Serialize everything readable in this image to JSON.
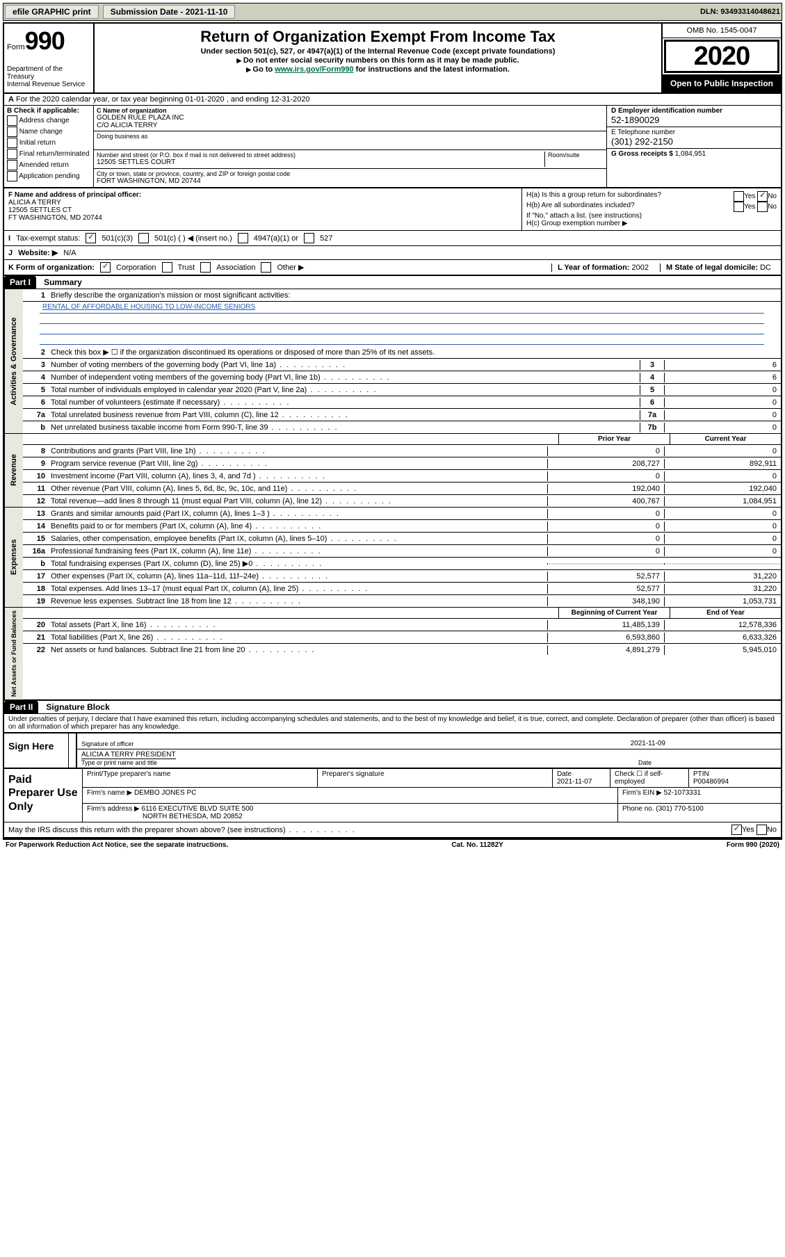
{
  "topbar": {
    "efile": "efile GRAPHIC print",
    "submission_label": "Submission Date - 2021-11-10",
    "dln": "DLN: 93493314048621"
  },
  "header": {
    "form_word": "Form",
    "form_number": "990",
    "title": "Return of Organization Exempt From Income Tax",
    "subtitle1": "Under section 501(c), 527, or 4947(a)(1) of the Internal Revenue Code (except private foundations)",
    "subtitle2": "Do not enter social security numbers on this form as it may be made public.",
    "subtitle3_prefix": "Go to ",
    "subtitle3_link": "www.irs.gov/Form990",
    "subtitle3_suffix": " for instructions and the latest information.",
    "dept": "Department of the Treasury",
    "irs": "Internal Revenue Service",
    "omb": "OMB No. 1545-0047",
    "year": "2020",
    "open": "Open to Public Inspection"
  },
  "taxyear": "For the 2020 calendar year, or tax year beginning 01-01-2020    , and ending 12-31-2020",
  "blockB": {
    "label": "B Check if applicable:",
    "addr": "Address change",
    "name": "Name change",
    "init": "Initial return",
    "final": "Final return/terminated",
    "amend": "Amended return",
    "app": "Application pending"
  },
  "blockC": {
    "name_lbl": "C Name of organization",
    "name": "GOLDEN RULE PLAZA INC",
    "co": "C/O ALICIA TERRY",
    "dba_lbl": "Doing business as",
    "street_lbl": "Number and street (or P.O. box if mail is not delivered to street address)",
    "street": "12505 SETTLES COURT",
    "room_lbl": "Room/suite",
    "city_lbl": "City or town, state or province, country, and ZIP or foreign postal code",
    "city": "FORT WASHINGTON, MD  20744"
  },
  "blockD": {
    "lbl": "D Employer identification number",
    "val": "52-1890029"
  },
  "blockE": {
    "lbl": "E Telephone number",
    "val": "(301) 292-2150"
  },
  "blockG": {
    "lbl": "G Gross receipts $",
    "val": "1,084,951"
  },
  "blockF": {
    "lbl": "F Name and address of principal officer:",
    "name": "ALICIA A TERRY",
    "street": "12505 SETTLES CT",
    "city": "FT WASHINGTON, MD  20744"
  },
  "blockH": {
    "ha": "H(a)  Is this a group return for subordinates?",
    "hb": "H(b)  Are all subordinates included?",
    "hb_note": "If \"No,\" attach a list. (see instructions)",
    "hc": "H(c)  Group exemption number ▶",
    "yes": "Yes",
    "no": "No"
  },
  "blockI": {
    "lbl": "Tax-exempt status:",
    "c501c3": "501(c)(3)",
    "c501c": "501(c) (   ) ◀ (insert no.)",
    "c4947": "4947(a)(1) or",
    "c527": "527"
  },
  "blockJ": {
    "lbl": "Website: ▶",
    "val": "N/A"
  },
  "blockK": {
    "lbl": "K Form of organization:",
    "corp": "Corporation",
    "trust": "Trust",
    "assoc": "Association",
    "other": "Other ▶"
  },
  "blockL": {
    "lbl": "L Year of formation:",
    "val": "2002"
  },
  "blockM": {
    "lbl": "M State of legal domicile:",
    "val": "DC"
  },
  "part1": {
    "header": "Part I",
    "title": "Summary",
    "line1_lbl": "Briefly describe the organization's mission or most significant activities:",
    "line1_val": "RENTAL OF AFFORDABLE HOUSING TO LOW-INCOME SENIORS",
    "line2": "Check this box ▶ ☐  if the organization discontinued its operations or disposed of more than 25% of its net assets.",
    "lines_ag": [
      {
        "n": "3",
        "d": "Number of voting members of the governing body (Part VI, line 1a)",
        "b": "3",
        "v": "6"
      },
      {
        "n": "4",
        "d": "Number of independent voting members of the governing body (Part VI, line 1b)",
        "b": "4",
        "v": "6"
      },
      {
        "n": "5",
        "d": "Total number of individuals employed in calendar year 2020 (Part V, line 2a)",
        "b": "5",
        "v": "0"
      },
      {
        "n": "6",
        "d": "Total number of volunteers (estimate if necessary)",
        "b": "6",
        "v": "0"
      },
      {
        "n": "7a",
        "d": "Total unrelated business revenue from Part VIII, column (C), line 12",
        "b": "7a",
        "v": "0"
      },
      {
        "n": "b",
        "d": "Net unrelated business taxable income from Form 990-T, line 39",
        "b": "7b",
        "v": "0"
      }
    ],
    "prior_year": "Prior Year",
    "current_year": "Current Year",
    "revenue": [
      {
        "n": "8",
        "d": "Contributions and grants (Part VIII, line 1h)",
        "p": "0",
        "c": "0"
      },
      {
        "n": "9",
        "d": "Program service revenue (Part VIII, line 2g)",
        "p": "208,727",
        "c": "892,911"
      },
      {
        "n": "10",
        "d": "Investment income (Part VIII, column (A), lines 3, 4, and 7d )",
        "p": "0",
        "c": "0"
      },
      {
        "n": "11",
        "d": "Other revenue (Part VIII, column (A), lines 5, 6d, 8c, 9c, 10c, and 11e)",
        "p": "192,040",
        "c": "192,040"
      },
      {
        "n": "12",
        "d": "Total revenue—add lines 8 through 11 (must equal Part VIII, column (A), line 12)",
        "p": "400,767",
        "c": "1,084,951"
      }
    ],
    "expenses": [
      {
        "n": "13",
        "d": "Grants and similar amounts paid (Part IX, column (A), lines 1–3 )",
        "p": "0",
        "c": "0"
      },
      {
        "n": "14",
        "d": "Benefits paid to or for members (Part IX, column (A), line 4)",
        "p": "0",
        "c": "0"
      },
      {
        "n": "15",
        "d": "Salaries, other compensation, employee benefits (Part IX, column (A), lines 5–10)",
        "p": "0",
        "c": "0"
      },
      {
        "n": "16a",
        "d": "Professional fundraising fees (Part IX, column (A), line 11e)",
        "p": "0",
        "c": "0"
      },
      {
        "n": "b",
        "d": "Total fundraising expenses (Part IX, column (D), line 25) ▶0",
        "p": "",
        "c": ""
      },
      {
        "n": "17",
        "d": "Other expenses (Part IX, column (A), lines 11a–11d, 11f–24e)",
        "p": "52,577",
        "c": "31,220"
      },
      {
        "n": "18",
        "d": "Total expenses. Add lines 13–17 (must equal Part IX, column (A), line 25)",
        "p": "52,577",
        "c": "31,220"
      },
      {
        "n": "19",
        "d": "Revenue less expenses. Subtract line 18 from line 12",
        "p": "348,190",
        "c": "1,053,731"
      }
    ],
    "boy": "Beginning of Current Year",
    "eoy": "End of Year",
    "netassets": [
      {
        "n": "20",
        "d": "Total assets (Part X, line 16)",
        "p": "11,485,139",
        "c": "12,578,336"
      },
      {
        "n": "21",
        "d": "Total liabilities (Part X, line 26)",
        "p": "6,593,860",
        "c": "6,633,326"
      },
      {
        "n": "22",
        "d": "Net assets or fund balances. Subtract line 21 from line 20",
        "p": "4,891,279",
        "c": "5,945,010"
      }
    ],
    "vtab_ag": "Activities & Governance",
    "vtab_rev": "Revenue",
    "vtab_exp": "Expenses",
    "vtab_na": "Net Assets or Fund Balances"
  },
  "part2": {
    "header": "Part II",
    "title": "Signature Block",
    "declaration": "Under penalties of perjury, I declare that I have examined this return, including accompanying schedules and statements, and to the best of my knowledge and belief, it is true, correct, and complete. Declaration of preparer (other than officer) is based on all information of which preparer has any knowledge.",
    "sign_here": "Sign Here",
    "sig_officer_lbl": "Signature of officer",
    "sig_date": "2021-11-09",
    "date_lbl": "Date",
    "officer_name": "ALICIA A TERRY PRESIDENT",
    "type_lbl": "Type or print name and title",
    "paid": "Paid Preparer Use Only",
    "h1": "Print/Type preparer's name",
    "h2": "Preparer's signature",
    "h3": "Date",
    "h3_val": "2021-11-07",
    "h4": "Check ☐ if self-employed",
    "h5": "PTIN",
    "h5_val": "P00486994",
    "firm_name_lbl": "Firm's name    ▶",
    "firm_name": "DEMBO JONES PC",
    "firm_ein_lbl": "Firm's EIN ▶",
    "firm_ein": "52-1073331",
    "firm_addr_lbl": "Firm's address ▶",
    "firm_addr1": "6116 EXECUTIVE BLVD SUITE 500",
    "firm_addr2": "NORTH BETHESDA, MD  20852",
    "phone_lbl": "Phone no.",
    "phone": "(301) 770-5100",
    "discuss": "May the IRS discuss this return with the preparer shown above? (see instructions)"
  },
  "footer": {
    "left": "For Paperwork Reduction Act Notice, see the separate instructions.",
    "mid": "Cat. No. 11282Y",
    "right": "Form 990 (2020)"
  }
}
